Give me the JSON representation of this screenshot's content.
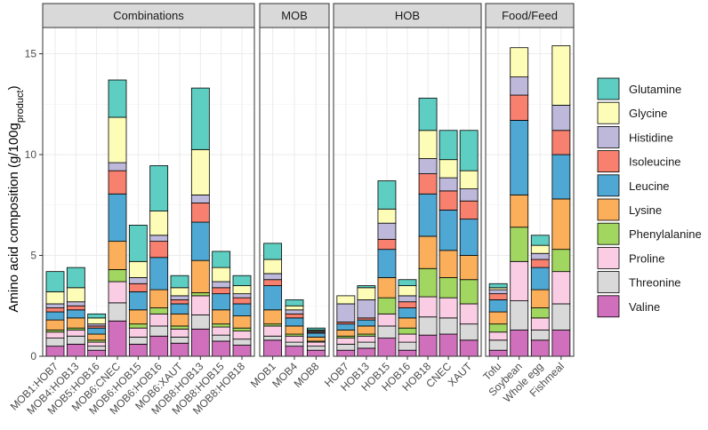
{
  "chart_data": {
    "type": "bar",
    "stacked": true,
    "ylabel": "Amino acid composition (g/100g",
    "ylabel_sub": "product",
    "ylabel_close": ")",
    "ylim": [
      0,
      16.3
    ],
    "yticks": [
      0,
      5,
      10,
      15
    ],
    "grid": true,
    "legend_position": "right",
    "series_order": [
      "Valine",
      "Threonine",
      "Proline",
      "Phenylalanine",
      "Lysine",
      "Leucine",
      "Isoleucine",
      "Histidine",
      "Glycine",
      "Glutamine"
    ],
    "legend_order": [
      "Glutamine",
      "Glycine",
      "Histidine",
      "Isoleucine",
      "Leucine",
      "Lysine",
      "Phenylalanine",
      "Proline",
      "Threonine",
      "Valine"
    ],
    "colors": {
      "Glutamine": "#5ECEC2",
      "Glycine": "#FDFDB8",
      "Histidine": "#BEB8DA",
      "Isoleucine": "#F7806F",
      "Leucine": "#4FA8D3",
      "Lysine": "#FBAF5A",
      "Phenylalanine": "#A1D760",
      "Proline": "#FBCDE5",
      "Threonine": "#D9D9D9",
      "Valine": "#D06FBC"
    },
    "panels": [
      {
        "title": "Combinations",
        "bars": [
          {
            "label": "MOB1:HOB7",
            "values": [
              0.5,
              0.4,
              0.3,
              0.1,
              0.5,
              0.4,
              0.2,
              0.2,
              0.6,
              1.0
            ]
          },
          {
            "label": "MOB4:HOB13",
            "values": [
              0.6,
              0.4,
              0.3,
              0.1,
              0.5,
              0.4,
              0.2,
              0.2,
              0.7,
              1.0
            ]
          },
          {
            "label": "MOB5:HOB16",
            "values": [
              0.3,
              0.2,
              0.2,
              0.1,
              0.3,
              0.3,
              0.1,
              0.1,
              0.3,
              0.2
            ]
          },
          {
            "label": "MOB6:CNEC",
            "values": [
              1.75,
              0.9,
              1.05,
              0.6,
              1.4,
              2.35,
              1.15,
              0.4,
              2.25,
              1.85
            ]
          },
          {
            "label": "MOB6:HOB15",
            "values": [
              0.6,
              0.35,
              0.45,
              0.2,
              0.7,
              0.9,
              0.4,
              0.3,
              0.8,
              1.8
            ]
          },
          {
            "label": "MOB6:HOB16",
            "values": [
              1.0,
              0.5,
              0.6,
              0.3,
              0.9,
              1.6,
              0.8,
              0.3,
              1.2,
              2.25
            ]
          },
          {
            "label": "MOB6:XAUT",
            "values": [
              0.65,
              0.3,
              0.4,
              0.15,
              0.6,
              0.5,
              0.2,
              0.2,
              0.4,
              0.6
            ]
          },
          {
            "label": "MOB8:HOB13",
            "values": [
              1.35,
              0.7,
              0.95,
              0.15,
              1.6,
              1.9,
              0.95,
              0.4,
              2.25,
              3.05
            ]
          },
          {
            "label": "MOB8:HOB15",
            "values": [
              0.75,
              0.3,
              0.4,
              0.15,
              0.7,
              0.8,
              0.3,
              0.3,
              0.7,
              0.8
            ]
          },
          {
            "label": "MOB8:HOB18",
            "values": [
              0.55,
              0.3,
              0.4,
              0.15,
              0.6,
              0.6,
              0.3,
              0.2,
              0.4,
              0.5
            ]
          }
        ]
      },
      {
        "title": "MOB",
        "bars": [
          {
            "label": "MOB1",
            "values": [
              0.8,
              0.2,
              0.5,
              0.1,
              0.7,
              1.2,
              0.3,
              0.3,
              0.7,
              0.8
            ]
          },
          {
            "label": "MOB4",
            "values": [
              0.5,
              0.2,
              0.3,
              0.1,
              0.4,
              0.4,
              0.2,
              0.2,
              0.2,
              0.3
            ]
          },
          {
            "label": "MOB8",
            "values": [
              0.3,
              0.2,
              0.2,
              0.05,
              0.2,
              0.2,
              0.05,
              0.05,
              0.05,
              0.1
            ]
          }
        ]
      },
      {
        "title": "HOB",
        "bars": [
          {
            "label": "HOB7",
            "values": [
              0.3,
              0.3,
              0.3,
              0.1,
              0.3,
              0.3,
              0.1,
              0.9,
              0.4,
              0.0
            ]
          },
          {
            "label": "HOB13",
            "values": [
              0.4,
              0.3,
              0.3,
              0.1,
              0.4,
              0.3,
              0.1,
              0.9,
              0.6,
              0.1
            ]
          },
          {
            "label": "HOB15",
            "values": [
              0.9,
              0.6,
              0.6,
              0.8,
              1.0,
              1.4,
              0.5,
              0.8,
              0.7,
              1.4
            ]
          },
          {
            "label": "HOB16",
            "values": [
              0.3,
              0.4,
              0.4,
              0.3,
              0.5,
              0.5,
              0.3,
              0.3,
              0.5,
              0.3
            ]
          },
          {
            "label": "HOB18",
            "values": [
              1.05,
              0.9,
              1.0,
              1.4,
              1.6,
              2.1,
              1.0,
              0.75,
              1.4,
              1.6
            ]
          },
          {
            "label": "CNEC",
            "values": [
              1.1,
              0.8,
              1.0,
              1.0,
              1.35,
              2.0,
              0.95,
              0.65,
              0.9,
              1.45
            ]
          },
          {
            "label": "XAUT",
            "values": [
              0.8,
              0.8,
              1.0,
              1.2,
              1.2,
              1.8,
              0.9,
              0.6,
              0.9,
              2.0
            ]
          }
        ]
      },
      {
        "title": "Food/Feed",
        "bars": [
          {
            "label": "Tofu",
            "values": [
              0.3,
              0.5,
              0.4,
              0.4,
              0.6,
              0.6,
              0.3,
              0.2,
              0.1,
              0.2
            ]
          },
          {
            "label": "Soybean",
            "values": [
              1.3,
              1.45,
              1.95,
              1.7,
              1.6,
              3.7,
              1.25,
              0.9,
              1.45,
              0.0
            ]
          },
          {
            "label": "Whole egg",
            "values": [
              0.8,
              0.5,
              0.6,
              0.5,
              0.9,
              1.1,
              0.4,
              0.3,
              0.4,
              0.5
            ]
          },
          {
            "label": "Fishmeal",
            "values": [
              1.3,
              1.3,
              1.6,
              1.1,
              2.5,
              2.2,
              1.2,
              1.25,
              2.95,
              0.0
            ]
          }
        ]
      }
    ]
  }
}
